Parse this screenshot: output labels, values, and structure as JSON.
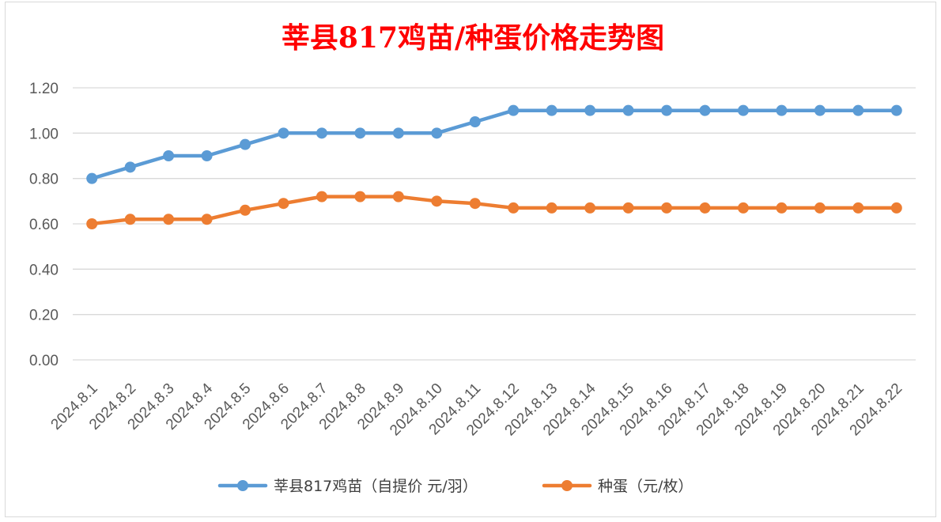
{
  "chart_data": {
    "type": "line",
    "title": "莘县817鸡苗/种蛋价格走势图",
    "categories": [
      "2024.8.1",
      "2024.8.2",
      "2024.8.3",
      "2024.8.4",
      "2024.8.5",
      "2024.8.6",
      "2024.8.7",
      "2024.8.8",
      "2024.8.9",
      "2024.8.10",
      "2024.8.11",
      "2024.8.12",
      "2024.8.13",
      "2024.8.14",
      "2024.8.15",
      "2024.8.16",
      "2024.8.17",
      "2024.8.18",
      "2024.8.19",
      "2024.8.20",
      "2024.8.21",
      "2024.8.22"
    ],
    "y_ticks": [
      "0.00",
      "0.20",
      "0.40",
      "0.60",
      "0.80",
      "1.00",
      "1.20"
    ],
    "ylim": [
      0,
      1.2
    ],
    "grid": "horizontal",
    "legend_position": "bottom",
    "series": [
      {
        "name": "莘县817鸡苗（自提价 元/羽）",
        "color": "#5b9bd5",
        "values": [
          0.8,
          0.85,
          0.9,
          0.9,
          0.95,
          1.0,
          1.0,
          1.0,
          1.0,
          1.0,
          1.05,
          1.1,
          1.1,
          1.1,
          1.1,
          1.1,
          1.1,
          1.1,
          1.1,
          1.1,
          1.1,
          1.1
        ]
      },
      {
        "name": "种蛋（元/枚）",
        "color": "#ed7d31",
        "values": [
          0.6,
          0.62,
          0.62,
          0.62,
          0.66,
          0.69,
          0.72,
          0.72,
          0.72,
          0.7,
          0.69,
          0.67,
          0.67,
          0.67,
          0.67,
          0.67,
          0.67,
          0.67,
          0.67,
          0.67,
          0.67,
          0.67
        ]
      }
    ]
  }
}
